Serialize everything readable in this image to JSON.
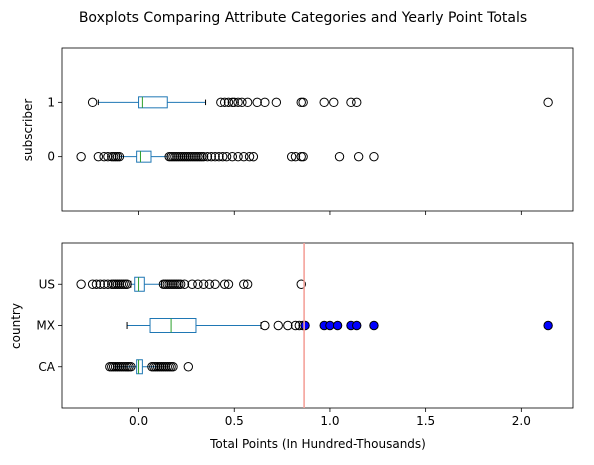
{
  "chart_data": {
    "type": "boxplot",
    "title": "Boxplots Comparing Attribute Categories and Yearly Point Totals",
    "xlabel": "Total Points (In Hundred-Thousands)",
    "xlim": [
      -0.4,
      2.27
    ],
    "xticks": [
      0.0,
      0.5,
      1.0,
      1.5,
      2.0
    ],
    "xtick_labels": [
      "0.0",
      "0.5",
      "1.0",
      "1.5",
      "2.0"
    ],
    "box_color": "#1f77b4",
    "median_color": "#2ca02c",
    "reference_line": {
      "x": 0.865,
      "color": "#f4a29b"
    },
    "highlight_color": "#0000ff",
    "panels": [
      {
        "ylabel": "subscriber",
        "groups": [
          {
            "label": "0",
            "whisker_low": -0.1,
            "q1": -0.01,
            "median": 0.01,
            "q3": 0.065,
            "whisker_high": 0.15,
            "outliers": [
              -0.3,
              -0.21,
              -0.18,
              -0.16,
              -0.14,
              -0.13,
              -0.12,
              -0.11,
              -0.1,
              0.16,
              0.17,
              0.18,
              0.19,
              0.2,
              0.21,
              0.22,
              0.23,
              0.24,
              0.25,
              0.26,
              0.27,
              0.28,
              0.29,
              0.3,
              0.31,
              0.32,
              0.33,
              0.34,
              0.36,
              0.38,
              0.4,
              0.42,
              0.44,
              0.46,
              0.49,
              0.52,
              0.55,
              0.58,
              0.6,
              0.8,
              0.82,
              0.85,
              0.86,
              1.05,
              1.15,
              1.23
            ],
            "highlighted": []
          },
          {
            "label": "1",
            "whisker_low": -0.21,
            "q1": 0.0,
            "median": 0.02,
            "q3": 0.15,
            "whisker_high": 0.35,
            "outliers": [
              -0.24,
              0.43,
              0.45,
              0.47,
              0.49,
              0.5,
              0.52,
              0.54,
              0.57,
              0.62,
              0.66,
              0.72,
              0.85,
              0.86,
              0.97,
              1.02,
              1.11,
              1.14,
              2.14
            ],
            "highlighted": []
          }
        ]
      },
      {
        "ylabel": "country",
        "groups": [
          {
            "label": "CA",
            "whisker_low": -0.12,
            "q1": -0.01,
            "median": 0.0,
            "q3": 0.02,
            "whisker_high": 0.1,
            "outliers": [
              -0.15,
              -0.14,
              -0.13,
              -0.12,
              -0.11,
              -0.1,
              -0.09,
              -0.08,
              -0.07,
              -0.06,
              -0.05,
              -0.04,
              0.07,
              0.08,
              0.09,
              0.1,
              0.11,
              0.12,
              0.13,
              0.14,
              0.15,
              0.16,
              0.17,
              0.18,
              0.26
            ],
            "highlighted": []
          },
          {
            "label": "MX",
            "whisker_low": -0.06,
            "q1": 0.06,
            "median": 0.17,
            "q3": 0.3,
            "whisker_high": 0.64,
            "outliers": [
              0.66,
              0.73,
              0.78,
              0.82,
              0.84,
              0.86
            ],
            "highlighted": [
              0.87,
              0.97,
              1.0,
              1.04,
              1.11,
              1.14,
              1.23,
              2.14
            ]
          },
          {
            "label": "US",
            "whisker_low": -0.04,
            "q1": -0.02,
            "median": 0.0,
            "q3": 0.03,
            "whisker_high": 0.12,
            "outliers": [
              -0.3,
              -0.24,
              -0.22,
              -0.2,
              -0.18,
              -0.16,
              -0.14,
              -0.13,
              -0.12,
              -0.11,
              -0.1,
              -0.09,
              -0.08,
              -0.07,
              -0.06,
              0.13,
              0.14,
              0.15,
              0.16,
              0.17,
              0.18,
              0.19,
              0.2,
              0.21,
              0.22,
              0.24,
              0.28,
              0.31,
              0.34,
              0.37,
              0.4,
              0.45,
              0.47,
              0.55,
              0.57,
              0.85
            ],
            "highlighted": []
          }
        ]
      }
    ]
  }
}
